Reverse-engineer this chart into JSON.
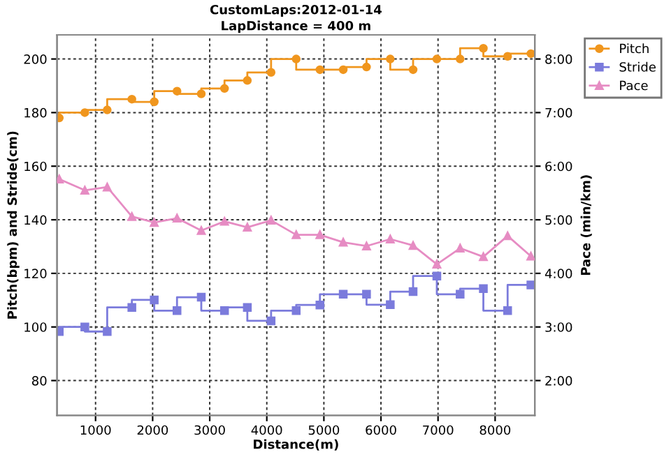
{
  "chart_data": {
    "type": "step",
    "title": "CustomLaps:2012-01-14",
    "subtitle": "LapDistance = 400 m",
    "xlabel": "Distance(m)",
    "ylabel": "Pitch(bpm) and Stride(cm)",
    "y2label": "Pace (min/km)",
    "x": [
      364,
      812,
      1204,
      1636,
      2028,
      2427,
      2852,
      3259,
      3659,
      4075,
      4515,
      4931,
      5339,
      5747,
      6163,
      6563,
      6979,
      7387,
      7794,
      8219,
      8627
    ],
    "series": [
      {
        "name": "Pitch",
        "color": "#f0961e",
        "marker": "circle",
        "values": [
          178,
          180,
          181,
          185,
          184,
          188,
          187,
          189,
          192,
          195,
          200,
          196,
          196,
          197,
          200,
          196,
          200,
          200,
          204,
          201,
          202
        ]
      },
      {
        "name": "Stride",
        "color": "#7b7bdc",
        "marker": "square",
        "values": [
          98.3,
          100,
          98.3,
          107.3,
          110.1,
          106.1,
          111.1,
          106.1,
          107.3,
          102.3,
          106.1,
          108.2,
          112.2,
          112.2,
          108.3,
          113.2,
          119,
          112.2,
          114.3,
          106.1,
          115.7
        ]
      },
      {
        "name": "Pace",
        "color": "#e68cc3",
        "type": "line",
        "axis": "y2",
        "marker": "triangle",
        "values": [
          5.76,
          5.55,
          5.61,
          5.06,
          4.95,
          5.03,
          4.8,
          4.97,
          4.86,
          4.99,
          4.72,
          4.72,
          4.58,
          4.51,
          4.64,
          4.52,
          4.17,
          4.47,
          4.31,
          4.7,
          4.32
        ]
      }
    ],
    "xlim": [
      325,
      8695
    ],
    "xticks": [
      1000,
      2000,
      3000,
      4000,
      5000,
      6000,
      7000,
      8000
    ],
    "ylim": [
      67,
      209
    ],
    "yticks": [
      80,
      100,
      120,
      140,
      160,
      180,
      200
    ],
    "y2lim": [
      1.35,
      8.45
    ],
    "y2ticks": [
      {
        "value": 2,
        "label": "2:00"
      },
      {
        "value": 3,
        "label": "3:00"
      },
      {
        "value": 4,
        "label": "4:00"
      },
      {
        "value": 5,
        "label": "5:00"
      },
      {
        "value": 6,
        "label": "6:00"
      },
      {
        "value": 7,
        "label": "7:00"
      },
      {
        "value": 8,
        "label": "8:00"
      }
    ],
    "grid": true,
    "legend": "top right",
    "line_style": "solid"
  }
}
